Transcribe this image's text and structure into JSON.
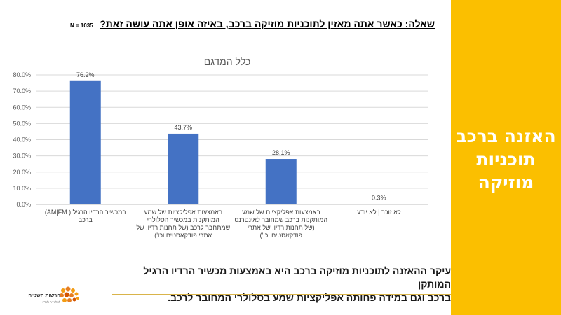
{
  "slide": {
    "question": "שאלה: כאשר אתה מאזין לתוכניות מוזיקה ברכב, באיזה אופן אתה עושה זאת?",
    "sample_size": "N = 1035",
    "side_title_lines": [
      "האזנה ברכב",
      "תוכניות",
      "מוזיקה"
    ],
    "summary_lines": [
      "עיקר ההאזנה לתוכניות מוזיקה ברכב היא באמצעות מכשיר הרדיו הרגיל המותקן",
      "ברכב וגם במידה פחותה אפליקציות שמע בסלולרי המחובר לרכב."
    ],
    "logo_text": "הרשות השנייה",
    "logo_subtext": "לטלוויזיה ולרדיו",
    "colors": {
      "accent": "#fbbf00",
      "bar": "#4472c4"
    }
  },
  "chart_data": {
    "type": "bar",
    "title": "כלל המדגם",
    "categories": [
      [
        "במכשיר הרדיו הרגיל ( AM|FM)",
        "ברכב"
      ],
      [
        "באמצעות אפליקציות של שמע",
        "המותקנות במכשיר הסלולרי",
        "שמתחבר לרכב (של תחנות רדיו, של",
        "אתרי פודקאסטים וכו')"
      ],
      [
        "באמצעות אפליקציות של שמע",
        "המותקנות ברכב שמחובר לאינטרנט",
        "(של תחנות רדיו, של אתרי",
        "פודקאסטים וכו')"
      ],
      [
        "לא זוכר | לא יודע"
      ]
    ],
    "values": [
      76.2,
      43.7,
      28.1,
      0.3
    ],
    "value_labels": [
      "76.2%",
      "43.7%",
      "28.1%",
      "0.3%"
    ],
    "y_ticks": [
      "0.0%",
      "10.0%",
      "20.0%",
      "30.0%",
      "40.0%",
      "50.0%",
      "60.0%",
      "70.0%",
      "80.0%"
    ],
    "ylim": [
      0,
      80
    ],
    "grid": true
  }
}
